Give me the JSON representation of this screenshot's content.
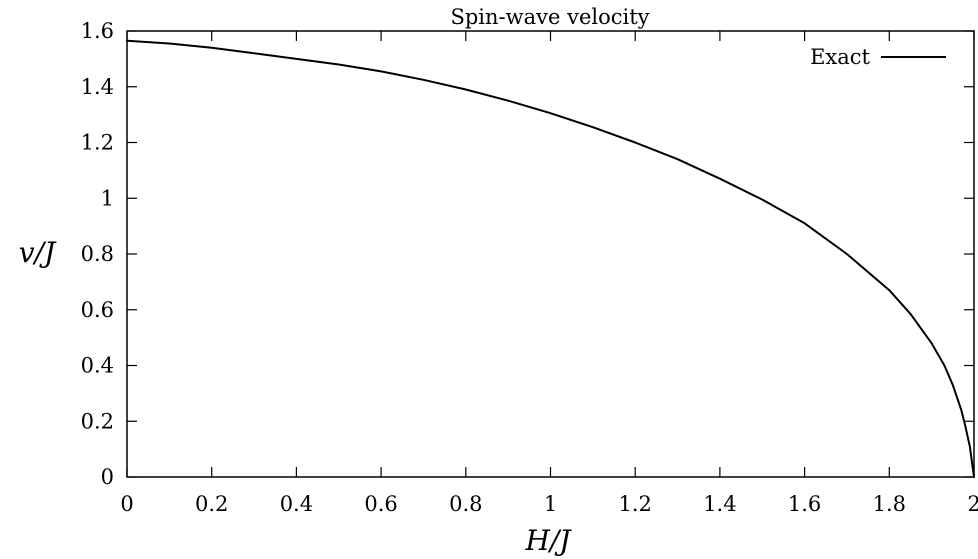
{
  "chart_data": {
    "type": "line",
    "title": "Spin-wave velocity",
    "xlabel": "H/J",
    "ylabel": "v/J",
    "xlim": [
      0,
      2
    ],
    "ylim": [
      0,
      1.6
    ],
    "xticks": [
      "0",
      "0.2",
      "0.4",
      "0.6",
      "0.8",
      "1",
      "1.2",
      "1.4",
      "1.6",
      "1.8",
      "2"
    ],
    "yticks": [
      "0",
      "0.2",
      "0.4",
      "0.6",
      "0.8",
      "1",
      "1.2",
      "1.4",
      "1.6"
    ],
    "grid": false,
    "legend_position": "top-right",
    "series": [
      {
        "name": "Exact",
        "color": "#000000",
        "x": [
          0,
          0.1,
          0.2,
          0.3,
          0.4,
          0.5,
          0.6,
          0.7,
          0.8,
          0.9,
          1.0,
          1.1,
          1.2,
          1.3,
          1.4,
          1.5,
          1.6,
          1.7,
          1.8,
          1.85,
          1.9,
          1.93,
          1.95,
          1.97,
          1.98,
          1.99,
          2.0
        ],
        "values": [
          1.565,
          1.555,
          1.54,
          1.52,
          1.5,
          1.48,
          1.455,
          1.425,
          1.39,
          1.35,
          1.305,
          1.255,
          1.2,
          1.14,
          1.07,
          0.995,
          0.91,
          0.8,
          0.67,
          0.585,
          0.48,
          0.4,
          0.33,
          0.24,
          0.18,
          0.11,
          0.0
        ]
      }
    ]
  }
}
